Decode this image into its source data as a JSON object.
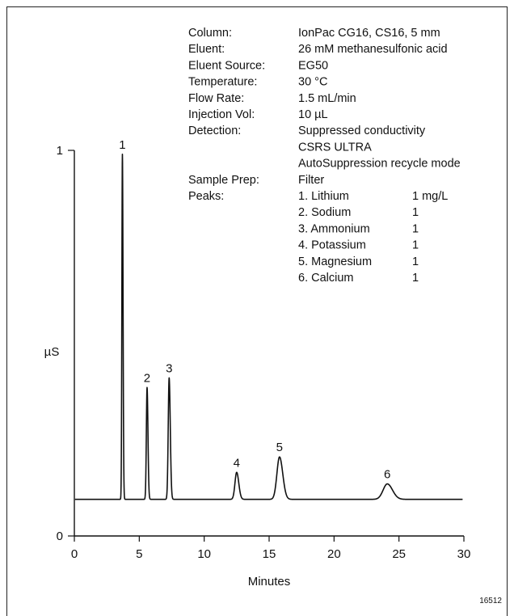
{
  "conditions": [
    {
      "label": "Column:",
      "value": "IonPac CG16, CS16, 5 mm"
    },
    {
      "label": "Eluent:",
      "value": "26 mM methanesulfonic acid"
    },
    {
      "label": "Eluent Source:",
      "value": "EG50"
    },
    {
      "label": "Temperature:",
      "value": "30 °C"
    },
    {
      "label": "Flow Rate:",
      "value": "1.5 mL/min"
    },
    {
      "label": "Injection Vol:",
      "value": "10 µL"
    },
    {
      "label": "Detection:",
      "value": "Suppressed conductivity"
    },
    {
      "label": "",
      "value": "CSRS ULTRA"
    },
    {
      "label": "",
      "value": "AutoSuppression recycle mode"
    },
    {
      "label": "Sample Prep:",
      "value": "Filter"
    }
  ],
  "peaks_label": "Peaks:",
  "peaks": [
    {
      "name": "1.  Lithium",
      "conc": "1 mg/L"
    },
    {
      "name": "2.  Sodium",
      "conc": "1"
    },
    {
      "name": "3.  Ammonium",
      "conc": "1"
    },
    {
      "name": "4.  Potassium",
      "conc": "1"
    },
    {
      "name": "5.  Magnesium",
      "conc": "1"
    },
    {
      "name": "6.  Calcium",
      "conc": "1"
    }
  ],
  "figure_id": "16512",
  "chart_data": {
    "type": "line",
    "xlabel": "Minutes",
    "ylabel": "µS",
    "xlim": [
      0,
      30
    ],
    "ylim": [
      0,
      1
    ],
    "x_ticks": [
      0,
      5,
      10,
      15,
      20,
      25,
      30
    ],
    "y_ticks": [
      0,
      1
    ],
    "baseline": 0.095,
    "series": [
      {
        "peaks": [
          {
            "label": "1",
            "x": 3.7,
            "y": 0.99,
            "sigma": 0.04
          },
          {
            "label": "2",
            "x": 5.6,
            "y": 0.385,
            "sigma": 0.055
          },
          {
            "label": "3",
            "x": 7.3,
            "y": 0.41,
            "sigma": 0.07
          },
          {
            "label": "4",
            "x": 12.5,
            "y": 0.165,
            "sigma": 0.13
          },
          {
            "label": "5",
            "x": 15.8,
            "y": 0.205,
            "sigma": 0.2
          },
          {
            "label": "6",
            "x": 24.1,
            "y": 0.135,
            "sigma": 0.32
          }
        ]
      }
    ]
  }
}
